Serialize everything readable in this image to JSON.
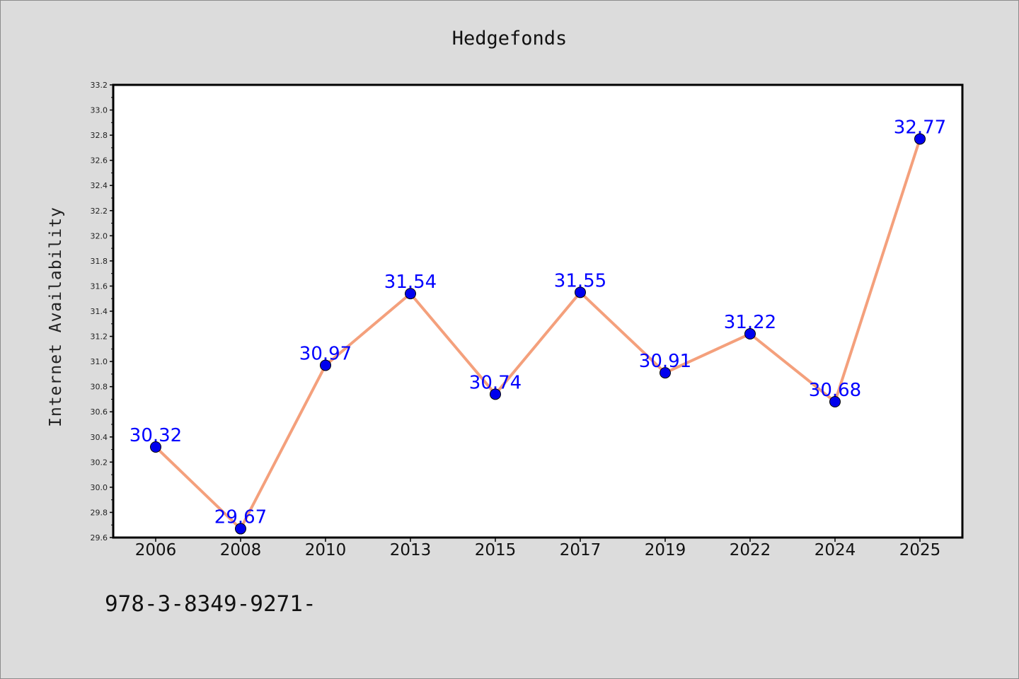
{
  "chart_data": {
    "type": "line",
    "title": "Hedgefonds",
    "xlabel": "",
    "ylabel": "Internet Availability",
    "categories": [
      "2006",
      "2008",
      "2010",
      "2013",
      "2015",
      "2017",
      "2019",
      "2022",
      "2024",
      "2025"
    ],
    "series": [
      {
        "values": [
          30.32,
          29.67,
          30.97,
          31.54,
          30.74,
          31.55,
          30.91,
          31.22,
          30.68,
          32.77
        ],
        "labels": [
          "30.32",
          "29.67",
          "30.97",
          "31.54",
          "30.74",
          "31.55",
          "30.91",
          "31.22",
          "30.68",
          "32.77"
        ],
        "line_color": "#f4a07c",
        "marker_color": "#0000ee",
        "label_color": "#0000ff"
      }
    ],
    "ylim": [
      29.6,
      33.2
    ],
    "yticks": [
      "29.6",
      "29.8",
      "30.0",
      "30.2",
      "30.4",
      "30.6",
      "30.8",
      "31.0",
      "31.2",
      "31.4",
      "31.6",
      "31.8",
      "32.0",
      "32.2",
      "32.4",
      "32.6",
      "32.8",
      "33.0",
      "33.2"
    ],
    "grid": false,
    "legend": "none",
    "background_color": "#dcdcdc",
    "plot_background_color": "#ffffff"
  },
  "footer": {
    "text": "978-3-8349-9271-"
  }
}
